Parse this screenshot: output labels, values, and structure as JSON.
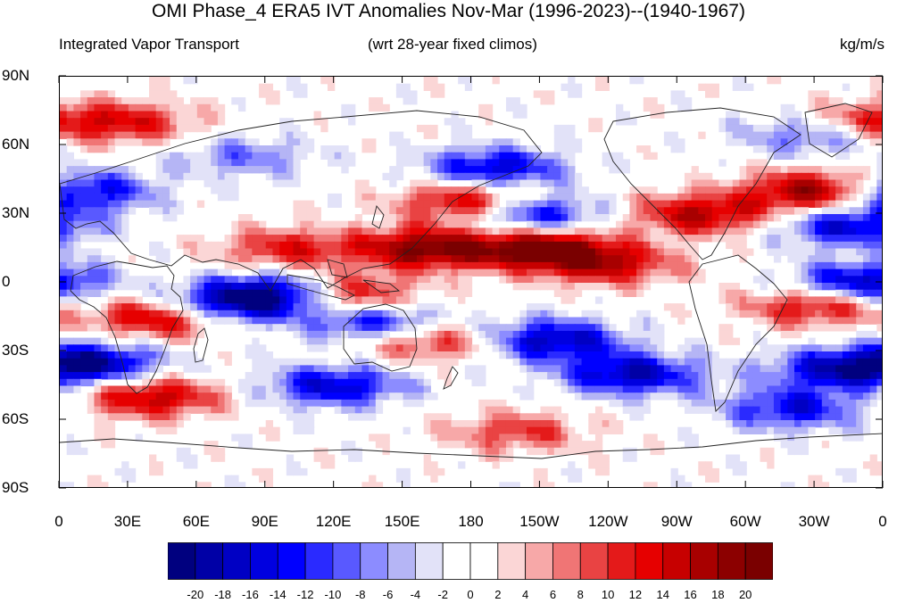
{
  "header": {
    "title": "OMI Phase_4 ERA5 IVT Anomalies Nov-Mar (1996-2023)--(1940-1967)",
    "left_label": "Integrated Vapor Transport",
    "center_label": "(wrt 28-year fixed climos)",
    "units": "kg/m/s"
  },
  "axes": {
    "lat_ticks": [
      "90N",
      "60N",
      "30N",
      "0",
      "30S",
      "60S",
      "90S"
    ],
    "lon_ticks": [
      "0",
      "30E",
      "60E",
      "90E",
      "120E",
      "150E",
      "180",
      "150W",
      "120W",
      "90W",
      "60W",
      "30W",
      "0"
    ]
  },
  "colorbar": {
    "tick_labels": [
      "-20",
      "-18",
      "-16",
      "-14",
      "-12",
      "-10",
      "-8",
      "-6",
      "-4",
      "-2",
      "0",
      "2",
      "4",
      "6",
      "8",
      "10",
      "12",
      "14",
      "16",
      "18",
      "20"
    ],
    "colors": [
      "#00007f",
      "#0000a6",
      "#0000c4",
      "#0000e0",
      "#0000ff",
      "#2a2aff",
      "#5959ff",
      "#8c8cff",
      "#b5b5f5",
      "#e2e2f8",
      "#ffffff",
      "#ffffff",
      "#fbd6d6",
      "#f7a8a8",
      "#f07575",
      "#e94343",
      "#e41a1a",
      "#e60000",
      "#c70000",
      "#a80000",
      "#8c0000",
      "#7a0000"
    ]
  },
  "chart_data": {
    "type": "heatmap",
    "title": "OMI Phase_4 ERA5 IVT Anomalies Nov-Mar (1996-2023)--(1940-1967)",
    "variable": "Integrated Vapor Transport",
    "units": "kg/m/s",
    "lon_range": [
      0,
      360
    ],
    "lat_range": [
      -90,
      90
    ],
    "color_levels": [
      -20,
      -18,
      -16,
      -14,
      -12,
      -10,
      -8,
      -6,
      -4,
      -2,
      0,
      2,
      4,
      6,
      8,
      10,
      12,
      14,
      16,
      18,
      20
    ],
    "anomaly_features": [
      {
        "lon": 210,
        "lat": 15,
        "sign": 1,
        "strength": 22
      },
      {
        "lon": 160,
        "lat": 15,
        "sign": 1,
        "strength": 20
      },
      {
        "lon": 240,
        "lat": 8,
        "sign": 1,
        "strength": 14
      },
      {
        "lon": 180,
        "lat": 35,
        "sign": 1,
        "strength": 18
      },
      {
        "lon": 205,
        "lat": 30,
        "sign": -1,
        "strength": 18
      },
      {
        "lon": 190,
        "lat": 50,
        "sign": -1,
        "strength": 16
      },
      {
        "lon": 45,
        "lat": -15,
        "sign": 1,
        "strength": 18
      },
      {
        "lon": 95,
        "lat": -5,
        "sign": -1,
        "strength": 20
      },
      {
        "lon": 70,
        "lat": -10,
        "sign": -1,
        "strength": 16
      },
      {
        "lon": 125,
        "lat": -5,
        "sign": 1,
        "strength": 16
      },
      {
        "lon": 140,
        "lat": -18,
        "sign": -1,
        "strength": 16
      },
      {
        "lon": 160,
        "lat": -25,
        "sign": 1,
        "strength": 14
      },
      {
        "lon": 215,
        "lat": -25,
        "sign": -1,
        "strength": 18
      },
      {
        "lon": 280,
        "lat": 30,
        "sign": 1,
        "strength": 16
      },
      {
        "lon": 330,
        "lat": 40,
        "sign": 1,
        "strength": 20
      },
      {
        "lon": 345,
        "lat": 25,
        "sign": -1,
        "strength": 16
      },
      {
        "lon": 350,
        "lat": 0,
        "sign": -1,
        "strength": 18
      },
      {
        "lon": 330,
        "lat": -10,
        "sign": 1,
        "strength": 14
      },
      {
        "lon": 10,
        "lat": 40,
        "sign": -1,
        "strength": 16
      },
      {
        "lon": 15,
        "lat": -35,
        "sign": -1,
        "strength": 18
      },
      {
        "lon": 40,
        "lat": -50,
        "sign": 1,
        "strength": 16
      },
      {
        "lon": 120,
        "lat": -45,
        "sign": -1,
        "strength": 16
      },
      {
        "lon": 250,
        "lat": -40,
        "sign": -1,
        "strength": 18
      },
      {
        "lon": 340,
        "lat": -38,
        "sign": -1,
        "strength": 16
      },
      {
        "lon": 320,
        "lat": -55,
        "sign": -1,
        "strength": 14
      },
      {
        "lon": 200,
        "lat": -65,
        "sign": 1,
        "strength": 10
      },
      {
        "lon": 330,
        "lat": 65,
        "sign": -1,
        "strength": 12
      },
      {
        "lon": 350,
        "lat": 70,
        "sign": 1,
        "strength": 12
      },
      {
        "lon": 30,
        "lat": 70,
        "sign": 1,
        "strength": 12
      },
      {
        "lon": 100,
        "lat": 15,
        "sign": 1,
        "strength": 12
      },
      {
        "lon": 80,
        "lat": 55,
        "sign": -1,
        "strength": 8
      }
    ]
  }
}
